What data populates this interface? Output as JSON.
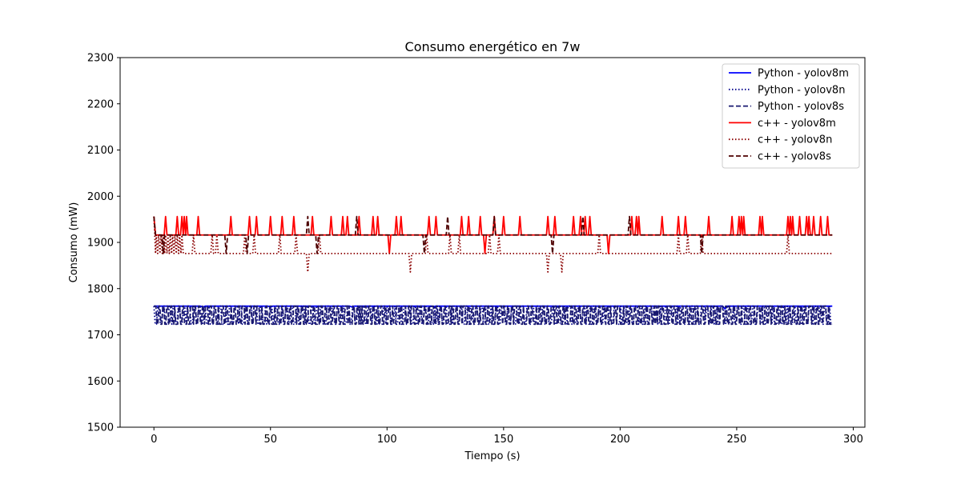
{
  "chart_data": {
    "type": "line",
    "title": "Consumo energético en 7w",
    "xlabel": "Tiempo (s)",
    "ylabel": "Consumo (mW)",
    "xlim": [
      -14.5,
      305
    ],
    "ylim": [
      1500,
      2300
    ],
    "xticks": [
      "0",
      "50",
      "100",
      "150",
      "200",
      "250",
      "300"
    ],
    "yticks": [
      "1500",
      "1600",
      "1700",
      "1800",
      "1900",
      "2000",
      "2100",
      "2200",
      "2300"
    ],
    "grid": false,
    "legend_position": "top-right",
    "x_max": 291,
    "series": [
      {
        "name": "Python - yolov8m",
        "color": "#0000ff",
        "dash": "solid",
        "base": 1762,
        "points": [
          [
            0,
            1762
          ],
          [
            20,
            1762
          ],
          [
            21,
            1760
          ],
          [
            22,
            1762
          ],
          [
            49,
            1762
          ],
          [
            50,
            1760
          ],
          [
            51,
            1762
          ],
          [
            84,
            1762
          ],
          [
            85,
            1760
          ],
          [
            86,
            1762
          ],
          [
            119,
            1762
          ],
          [
            120,
            1761
          ],
          [
            121,
            1762
          ],
          [
            244,
            1762
          ],
          [
            245,
            1756
          ],
          [
            246,
            1762
          ],
          [
            291,
            1762
          ]
        ]
      },
      {
        "name": "Python - yolov8n",
        "color": "#00008b",
        "dash": "dotted",
        "pattern": {
          "low": 1723,
          "high": 1762,
          "period": 2.2,
          "duty": 0.45,
          "phase": 0.3
        }
      },
      {
        "name": "Python - yolov8s",
        "color": "#191970",
        "dash": "dashed",
        "pattern": {
          "low": 1723,
          "high": 1762,
          "period": 1.7,
          "duty": 0.5,
          "phase": 0.9
        }
      },
      {
        "name": "c++ - yolov8m",
        "color": "#ff0000",
        "dash": "solid",
        "base": 1916,
        "spikes": [
          [
            0,
            1956
          ],
          [
            5,
            1956
          ],
          [
            10,
            1956
          ],
          [
            12,
            1956
          ],
          [
            13,
            1956
          ],
          [
            14,
            1956
          ],
          [
            19,
            1956
          ],
          [
            33,
            1956
          ],
          [
            41,
            1956
          ],
          [
            44,
            1956
          ],
          [
            50,
            1956
          ],
          [
            55,
            1956
          ],
          [
            60,
            1956
          ],
          [
            68,
            1956
          ],
          [
            76,
            1956
          ],
          [
            81,
            1956
          ],
          [
            83,
            1956
          ],
          [
            88,
            1956
          ],
          [
            94,
            1956
          ],
          [
            96,
            1956
          ],
          [
            104,
            1956
          ],
          [
            106,
            1956
          ],
          [
            118,
            1956
          ],
          [
            121,
            1956
          ],
          [
            132,
            1956
          ],
          [
            135,
            1956
          ],
          [
            140,
            1956
          ],
          [
            146,
            1956
          ],
          [
            150,
            1956
          ],
          [
            157,
            1956
          ],
          [
            169,
            1956
          ],
          [
            172,
            1956
          ],
          [
            180,
            1956
          ],
          [
            183,
            1956
          ],
          [
            185,
            1956
          ],
          [
            187,
            1956
          ],
          [
            205,
            1956
          ],
          [
            207,
            1956
          ],
          [
            208,
            1956
          ],
          [
            218,
            1956
          ],
          [
            225,
            1956
          ],
          [
            228,
            1956
          ],
          [
            238,
            1956
          ],
          [
            248,
            1956
          ],
          [
            251,
            1956
          ],
          [
            252,
            1956
          ],
          [
            253,
            1956
          ],
          [
            260,
            1956
          ],
          [
            261,
            1956
          ],
          [
            272,
            1956
          ],
          [
            273,
            1956
          ],
          [
            274,
            1956
          ],
          [
            277,
            1956
          ],
          [
            280,
            1956
          ],
          [
            281,
            1956
          ],
          [
            283,
            1956
          ],
          [
            286,
            1956
          ],
          [
            289,
            1956
          ],
          [
            101,
            1876
          ],
          [
            142,
            1876
          ],
          [
            195,
            1876
          ]
        ]
      },
      {
        "name": "c++ - yolov8n",
        "color": "#8b0000",
        "dash": "dotted",
        "base": 1876,
        "spikes": [
          [
            0,
            1956
          ],
          [
            1,
            1916
          ],
          [
            2,
            1916
          ],
          [
            3,
            1916
          ],
          [
            4,
            1916
          ],
          [
            5,
            1916
          ],
          [
            6,
            1916
          ],
          [
            7,
            1916
          ],
          [
            8,
            1916
          ],
          [
            9,
            1916
          ],
          [
            10,
            1916
          ],
          [
            11,
            1916
          ],
          [
            12,
            1916
          ],
          [
            17,
            1916
          ],
          [
            25,
            1916
          ],
          [
            27,
            1916
          ],
          [
            39,
            1916
          ],
          [
            43,
            1916
          ],
          [
            54,
            1916
          ],
          [
            61,
            1916
          ],
          [
            71,
            1916
          ],
          [
            117,
            1916
          ],
          [
            127,
            1916
          ],
          [
            131,
            1916
          ],
          [
            144,
            1916
          ],
          [
            148,
            1916
          ],
          [
            191,
            1916
          ],
          [
            225,
            1916
          ],
          [
            229,
            1916
          ],
          [
            235,
            1916
          ],
          [
            272,
            1916
          ],
          [
            66,
            1836
          ],
          [
            110,
            1836
          ],
          [
            169,
            1836
          ],
          [
            175,
            1836
          ]
        ]
      },
      {
        "name": "c++ - yolov8s",
        "color": "#4d0000",
        "dash": "dashed",
        "base": 1916,
        "spikes": [
          [
            0,
            1956
          ],
          [
            4,
            1876
          ],
          [
            31,
            1876
          ],
          [
            40,
            1876
          ],
          [
            66,
            1956
          ],
          [
            70,
            1876
          ],
          [
            87,
            1956
          ],
          [
            116,
            1876
          ],
          [
            126,
            1956
          ],
          [
            146,
            1956
          ],
          [
            171,
            1876
          ],
          [
            184,
            1956
          ],
          [
            204,
            1956
          ],
          [
            235,
            1876
          ]
        ]
      }
    ]
  }
}
